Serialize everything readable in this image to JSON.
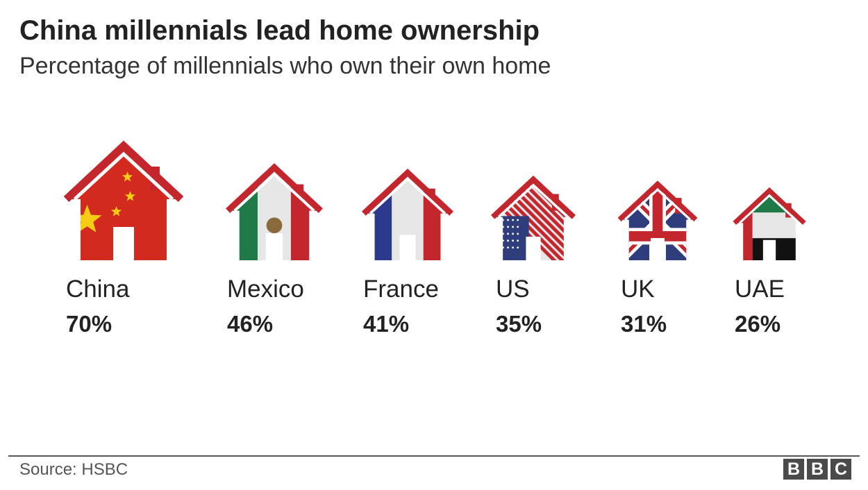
{
  "header": {
    "title": "China millennials lead home ownership",
    "subtitle": "Percentage of millennials who own their own home"
  },
  "footer": {
    "source": "Source: HSBC",
    "logo_letters": [
      "B",
      "B",
      "C"
    ]
  },
  "colors": {
    "roof_red": "#c4262e",
    "china_red": "#d32a1f",
    "china_star": "#f6cc14",
    "mexico_green": "#1f7a48",
    "france_blue": "#2b3a8c",
    "us_blue": "#2f3d7c",
    "uae_black": "#111111",
    "white_fill": "#e6e6e6"
  },
  "chart_data": {
    "type": "bar",
    "categories": [
      "China",
      "Mexico",
      "France",
      "US",
      "UK",
      "UAE"
    ],
    "values": [
      70,
      46,
      41,
      35,
      31,
      26
    ],
    "value_labels": [
      "70%",
      "46%",
      "41%",
      "35%",
      "31%",
      "26%"
    ],
    "unit": "%",
    "icons": [
      "china-flag-house-icon",
      "mexico-flag-house-icon",
      "france-flag-house-icon",
      "us-flag-house-icon",
      "uk-flag-house-icon",
      "uae-flag-house-icon"
    ]
  }
}
